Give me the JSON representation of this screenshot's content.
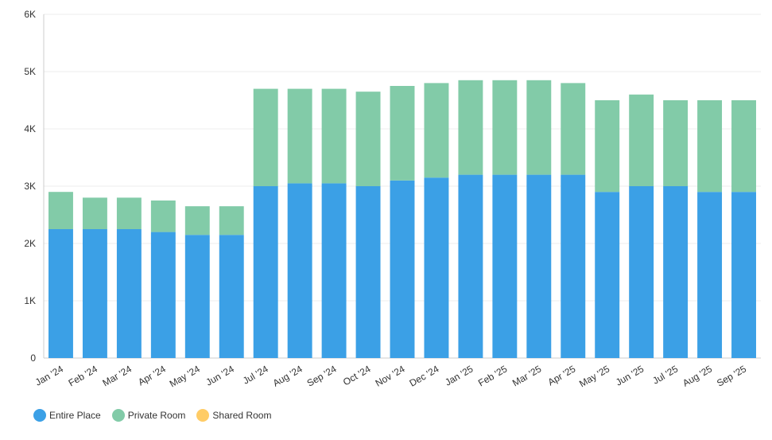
{
  "chart_data": {
    "type": "bar",
    "stacked": true,
    "categories": [
      "Jan '24",
      "Feb '24",
      "Mar '24",
      "Apr '24",
      "May '24",
      "Jun '24",
      "Jul '24",
      "Aug '24",
      "Sep '24",
      "Oct '24",
      "Nov '24",
      "Dec '24",
      "Jan '25",
      "Feb '25",
      "Mar '25",
      "Apr '25",
      "May '25",
      "Jun '25",
      "Jul '25",
      "Aug '25",
      "Sep '25"
    ],
    "series": [
      {
        "name": "Entire Place",
        "color": "#3ba0e6",
        "values": [
          2250,
          2250,
          2250,
          2200,
          2150,
          2150,
          3000,
          3050,
          3050,
          3000,
          3100,
          3150,
          3200,
          3200,
          3200,
          3200,
          2900,
          3000,
          3000,
          2900,
          2900
        ]
      },
      {
        "name": "Private Room",
        "color": "#82cba8",
        "values": [
          650,
          550,
          550,
          550,
          500,
          500,
          1700,
          1650,
          1650,
          1650,
          1650,
          1650,
          1650,
          1650,
          1650,
          1600,
          1600,
          1600,
          1500,
          1600,
          1600
        ]
      },
      {
        "name": "Shared Room",
        "color": "#ffcc66",
        "values": [
          0,
          0,
          0,
          0,
          0,
          0,
          0,
          0,
          0,
          0,
          0,
          0,
          0,
          0,
          0,
          0,
          0,
          0,
          0,
          0,
          0
        ]
      }
    ],
    "y_ticks": [
      "0",
      "1K",
      "2K",
      "3K",
      "4K",
      "5K",
      "6K"
    ],
    "ylim": [
      0,
      6000
    ],
    "grid": true,
    "legend_position": "bottom-left",
    "title": "",
    "xlabel": "",
    "ylabel": ""
  }
}
